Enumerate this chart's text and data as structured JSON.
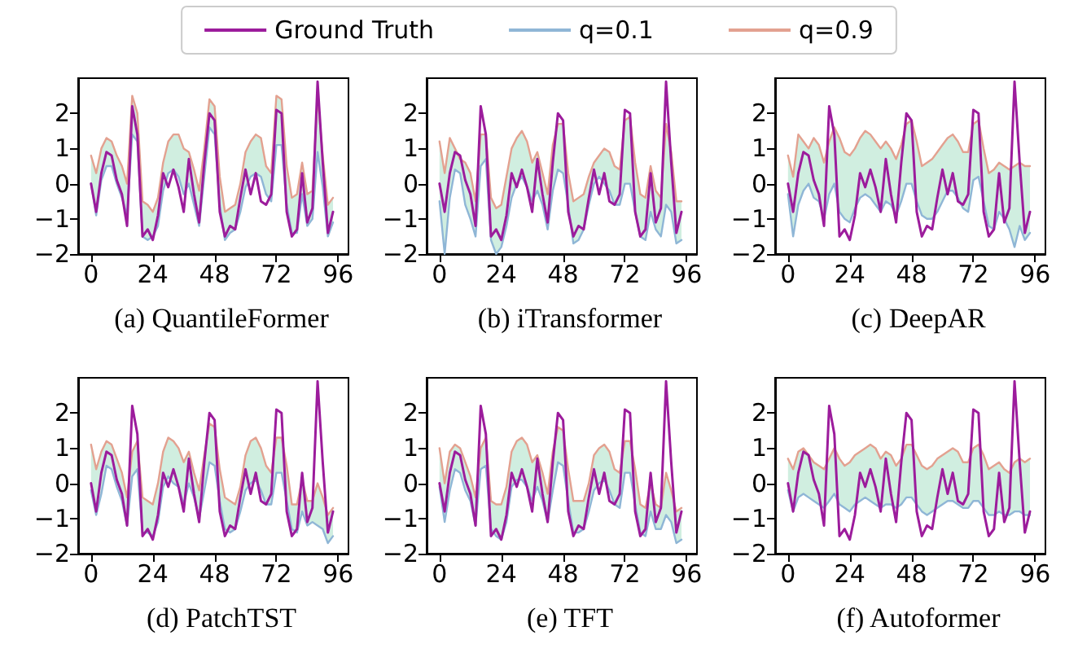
{
  "chart_data": [
    {
      "type": "line",
      "title": "(a) QuantileFormer",
      "legend": "top",
      "marker": "none",
      "line_style": "solid",
      "grid": false,
      "xlim": [
        -5,
        100
      ],
      "xticks": [
        0,
        24,
        48,
        72,
        96
      ],
      "ylim": [
        -2,
        3
      ],
      "yticks": [
        -2,
        -1,
        0,
        1,
        2
      ],
      "x": [
        0,
        2,
        4,
        6,
        8,
        10,
        12,
        14,
        16,
        18,
        20,
        22,
        24,
        26,
        28,
        30,
        32,
        34,
        36,
        38,
        40,
        42,
        44,
        46,
        48,
        50,
        52,
        54,
        56,
        58,
        60,
        62,
        64,
        66,
        68,
        70,
        72,
        74,
        76,
        78,
        80,
        82,
        84,
        86,
        88,
        90,
        92,
        94
      ],
      "series": [
        {
          "name": "Ground Truth",
          "color": "#9c1c9c",
          "values": [
            0.0,
            -0.8,
            0.3,
            0.9,
            0.8,
            0.1,
            -0.3,
            -1.2,
            2.2,
            1.4,
            -1.5,
            -1.3,
            -1.6,
            -0.9,
            0.3,
            -0.1,
            0.4,
            -0.1,
            -0.8,
            0.7,
            -0.3,
            -1.1,
            0.6,
            2.0,
            1.8,
            -0.8,
            -1.5,
            -1.2,
            -1.3,
            -0.4,
            0.4,
            -0.3,
            0.3,
            -0.5,
            -0.6,
            -0.3,
            2.1,
            2.0,
            -0.8,
            -1.5,
            -1.3,
            0.3,
            -1.1,
            -0.7,
            2.9,
            0.6,
            -1.4,
            -0.8
          ],
          "lower": [
            0.0,
            -0.9,
            0.1,
            0.5,
            0.5,
            0.0,
            -0.4,
            -0.9,
            1.4,
            1.2,
            -1.5,
            -1.6,
            -1.5,
            -1.2,
            -0.2,
            0.3,
            0.4,
            0.2,
            -0.3,
            0.0,
            -0.6,
            -1.2,
            0.2,
            1.6,
            1.4,
            -0.6,
            -1.6,
            -1.4,
            -1.3,
            -0.8,
            -0.1,
            0.2,
            0.3,
            0.2,
            -0.3,
            -0.5,
            1.1,
            1.1,
            -0.6,
            -1.4,
            -1.4,
            -0.3,
            -1.2,
            -1.0,
            0.9,
            -0.1,
            -1.5,
            -1.1
          ],
          "upper": [
            0.8,
            0.3,
            1.0,
            1.3,
            1.2,
            0.8,
            0.5,
            0.0,
            2.5,
            2.0,
            -0.5,
            -0.6,
            -0.8,
            -0.4,
            0.6,
            1.2,
            1.4,
            1.4,
            1.0,
            0.9,
            0.4,
            -0.2,
            1.0,
            2.4,
            2.2,
            0.2,
            -0.8,
            -0.7,
            -0.6,
            0.0,
            0.9,
            1.2,
            1.4,
            1.3,
            0.5,
            0.3,
            2.5,
            2.4,
            0.5,
            -0.4,
            -0.3,
            0.6,
            -0.3,
            -0.2,
            2.5,
            0.8,
            -0.6,
            -0.4
          ]
        },
        {
          "name": "q=0.1",
          "color": "#8fb6d6",
          "values": [
            0.0,
            -0.9,
            0.1,
            0.5,
            0.5,
            0.0,
            -0.4,
            -0.9,
            1.4,
            1.2,
            -1.5,
            -1.6,
            -1.5,
            -1.2,
            -0.2,
            0.3,
            0.4,
            0.2,
            -0.3,
            0.0,
            -0.6,
            -1.2,
            0.2,
            1.6,
            1.4,
            -0.6,
            -1.6,
            -1.4,
            -1.3,
            -0.8,
            -0.1,
            0.2,
            0.3,
            0.2,
            -0.3,
            -0.5,
            1.1,
            1.1,
            -0.6,
            -1.4,
            -1.4,
            -0.3,
            -1.2,
            -1.0,
            0.9,
            -0.1,
            -1.5,
            -1.1
          ]
        },
        {
          "name": "q=0.9",
          "color": "#e3a190",
          "values": [
            0.8,
            0.3,
            1.0,
            1.3,
            1.2,
            0.8,
            0.5,
            0.0,
            2.5,
            2.0,
            -0.5,
            -0.6,
            -0.8,
            -0.4,
            0.6,
            1.2,
            1.4,
            1.4,
            1.0,
            0.9,
            0.4,
            -0.2,
            1.0,
            2.4,
            2.2,
            0.2,
            -0.8,
            -0.7,
            -0.6,
            0.0,
            0.9,
            1.2,
            1.4,
            1.3,
            0.5,
            0.3,
            2.5,
            2.4,
            0.5,
            -0.4,
            -0.3,
            0.6,
            -0.3,
            -0.2,
            2.5,
            0.8,
            -0.6,
            -0.4
          ]
        }
      ]
    },
    {
      "type": "line",
      "title": "(b) iTransformer",
      "marker": "none",
      "line_style": "solid",
      "grid": false,
      "xlim": [
        -5,
        100
      ],
      "xticks": [
        0,
        24,
        48,
        72,
        96
      ],
      "ylim": [
        -2,
        3
      ],
      "yticks": [
        -2,
        -1,
        0,
        1,
        2
      ],
      "x": [
        0,
        2,
        4,
        6,
        8,
        10,
        12,
        14,
        16,
        18,
        20,
        22,
        24,
        26,
        28,
        30,
        32,
        34,
        36,
        38,
        40,
        42,
        44,
        46,
        48,
        50,
        52,
        54,
        56,
        58,
        60,
        62,
        64,
        66,
        68,
        70,
        72,
        74,
        76,
        78,
        80,
        82,
        84,
        86,
        88,
        90,
        92,
        94
      ],
      "series": [
        {
          "color": "#9c1c9c",
          "values": [
            0.0,
            -0.8,
            0.3,
            0.9,
            0.8,
            0.1,
            -0.3,
            -1.2,
            2.2,
            1.4,
            -1.5,
            -1.3,
            -1.6,
            -0.9,
            0.3,
            -0.1,
            0.4,
            -0.1,
            -0.8,
            0.7,
            -0.3,
            -1.1,
            0.6,
            2.0,
            1.8,
            -0.8,
            -1.5,
            -1.2,
            -1.3,
            -0.4,
            0.4,
            -0.3,
            0.3,
            -0.5,
            -0.6,
            -0.3,
            2.1,
            2.0,
            -0.8,
            -1.5,
            -1.3,
            0.3,
            -1.1,
            -0.7,
            2.9,
            0.6,
            -1.4,
            -0.8
          ],
          "lower": [
            -0.5,
            -2.0,
            -0.4,
            0.4,
            0.3,
            -0.6,
            -1.0,
            -1.5,
            0.5,
            0.7,
            -1.6,
            -2.0,
            -1.8,
            -1.2,
            -0.4,
            0.0,
            0.2,
            -0.1,
            -0.5,
            -0.2,
            -0.6,
            -1.3,
            -0.2,
            0.4,
            0.3,
            -0.6,
            -1.7,
            -1.6,
            -1.3,
            -0.6,
            0.0,
            0.2,
            0.0,
            -0.2,
            -0.6,
            -0.6,
            0.0,
            0.0,
            -0.8,
            -1.5,
            -1.6,
            -0.8,
            -1.3,
            -1.5,
            -0.6,
            -0.8,
            -1.7,
            -1.6
          ],
          "upper": [
            1.2,
            0.3,
            1.3,
            1.0,
            0.7,
            0.6,
            0.3,
            -0.5,
            1.4,
            1.4,
            -0.4,
            -0.7,
            -0.6,
            0.2,
            1.0,
            1.3,
            1.5,
            1.2,
            0.6,
            0.9,
            0.3,
            -0.3,
            1.1,
            1.7,
            1.7,
            0.3,
            -0.5,
            -0.4,
            -0.3,
            0.2,
            0.6,
            0.8,
            1.0,
            0.9,
            0.5,
            0.4,
            1.8,
            1.9,
            0.6,
            -0.3,
            -0.4,
            0.5,
            -0.2,
            -0.4,
            1.7,
            0.9,
            -0.5,
            -0.5
          ]
        },
        {
          "color": "#8fb6d6",
          "values": [
            -0.5,
            -2.0,
            -0.4,
            0.4,
            0.3,
            -0.6,
            -1.0,
            -1.5,
            0.5,
            0.7,
            -1.6,
            -2.0,
            -1.8,
            -1.2,
            -0.4,
            0.0,
            0.2,
            -0.1,
            -0.5,
            -0.2,
            -0.6,
            -1.3,
            -0.2,
            0.4,
            0.3,
            -0.6,
            -1.7,
            -1.6,
            -1.3,
            -0.6,
            0.0,
            0.2,
            0.0,
            -0.2,
            -0.6,
            -0.6,
            0.0,
            0.0,
            -0.8,
            -1.5,
            -1.6,
            -0.8,
            -1.3,
            -1.5,
            -0.6,
            -0.8,
            -1.7,
            -1.6
          ]
        },
        {
          "color": "#e3a190",
          "values": [
            1.2,
            0.3,
            1.3,
            1.0,
            0.7,
            0.6,
            0.3,
            -0.5,
            1.4,
            1.4,
            -0.4,
            -0.7,
            -0.6,
            0.2,
            1.0,
            1.3,
            1.5,
            1.2,
            0.6,
            0.9,
            0.3,
            -0.3,
            1.1,
            1.7,
            1.7,
            0.3,
            -0.5,
            -0.4,
            -0.3,
            0.2,
            0.6,
            0.8,
            1.0,
            0.9,
            0.5,
            0.4,
            1.8,
            1.9,
            0.6,
            -0.3,
            -0.4,
            0.5,
            -0.2,
            -0.4,
            1.7,
            0.9,
            -0.5,
            -0.5
          ]
        }
      ]
    },
    {
      "type": "line",
      "title": "(c) DeepAR",
      "marker": "none",
      "line_style": "solid",
      "grid": false,
      "xlim": [
        -5,
        100
      ],
      "xticks": [
        0,
        24,
        48,
        72,
        96
      ],
      "ylim": [
        -2,
        3
      ],
      "yticks": [
        -2,
        -1,
        0,
        1,
        2
      ],
      "x": [
        0,
        2,
        4,
        6,
        8,
        10,
        12,
        14,
        16,
        18,
        20,
        22,
        24,
        26,
        28,
        30,
        32,
        34,
        36,
        38,
        40,
        42,
        44,
        46,
        48,
        50,
        52,
        54,
        56,
        58,
        60,
        62,
        64,
        66,
        68,
        70,
        72,
        74,
        76,
        78,
        80,
        82,
        84,
        86,
        88,
        90,
        92,
        94
      ],
      "series": [
        {
          "color": "#9c1c9c",
          "values": [
            0.0,
            -0.8,
            0.3,
            0.9,
            0.8,
            0.1,
            -0.3,
            -1.2,
            2.2,
            1.4,
            -1.5,
            -1.3,
            -1.6,
            -0.9,
            0.3,
            -0.1,
            0.4,
            -0.1,
            -0.8,
            0.7,
            -0.3,
            -1.1,
            0.6,
            2.0,
            1.8,
            -0.8,
            -1.5,
            -1.2,
            -1.3,
            -0.4,
            0.4,
            -0.3,
            0.3,
            -0.5,
            -0.6,
            -0.3,
            2.1,
            2.0,
            -0.8,
            -1.5,
            -1.3,
            0.3,
            -1.1,
            -0.7,
            2.9,
            0.6,
            -1.4,
            -0.8
          ],
          "lower": [
            -0.3,
            -1.5,
            -0.6,
            -0.2,
            0.0,
            -0.4,
            -0.5,
            -1.0,
            -0.3,
            0.0,
            -0.8,
            -1.0,
            -1.1,
            -0.7,
            -0.4,
            -0.3,
            -0.4,
            -0.6,
            -0.8,
            -0.5,
            -0.6,
            -0.9,
            -0.5,
            0.0,
            0.0,
            -0.5,
            -0.9,
            -1.0,
            -1.0,
            -0.8,
            -0.5,
            -0.2,
            -0.2,
            -0.4,
            -0.7,
            -0.8,
            0.1,
            0.2,
            -0.5,
            -1.2,
            -1.3,
            -0.8,
            -1.0,
            -1.3,
            -1.8,
            -1.2,
            -1.6,
            -1.4
          ],
          "upper": [
            0.8,
            0.2,
            1.4,
            1.2,
            1.0,
            1.3,
            1.1,
            0.6,
            1.2,
            1.6,
            1.3,
            0.9,
            0.8,
            1.0,
            1.3,
            1.5,
            1.4,
            1.2,
            1.0,
            1.2,
            1.0,
            0.7,
            1.1,
            1.7,
            1.8,
            1.2,
            0.5,
            0.6,
            0.7,
            0.9,
            1.1,
            1.3,
            1.4,
            1.2,
            0.9,
            0.9,
            1.7,
            1.8,
            1.0,
            0.3,
            0.4,
            0.6,
            0.5,
            0.4,
            0.5,
            0.6,
            0.5,
            0.5
          ]
        },
        {
          "color": "#8fb6d6",
          "values": [
            -0.3,
            -1.5,
            -0.6,
            -0.2,
            0.0,
            -0.4,
            -0.5,
            -1.0,
            -0.3,
            0.0,
            -0.8,
            -1.0,
            -1.1,
            -0.7,
            -0.4,
            -0.3,
            -0.4,
            -0.6,
            -0.8,
            -0.5,
            -0.6,
            -0.9,
            -0.5,
            0.0,
            0.0,
            -0.5,
            -0.9,
            -1.0,
            -1.0,
            -0.8,
            -0.5,
            -0.2,
            -0.2,
            -0.4,
            -0.7,
            -0.8,
            0.1,
            0.2,
            -0.5,
            -1.2,
            -1.3,
            -0.8,
            -1.0,
            -1.3,
            -1.8,
            -1.2,
            -1.6,
            -1.4
          ]
        },
        {
          "color": "#e3a190",
          "values": [
            0.8,
            0.2,
            1.4,
            1.2,
            1.0,
            1.3,
            1.1,
            0.6,
            1.2,
            1.6,
            1.3,
            0.9,
            0.8,
            1.0,
            1.3,
            1.5,
            1.4,
            1.2,
            1.0,
            1.2,
            1.0,
            0.7,
            1.1,
            1.7,
            1.8,
            1.2,
            0.5,
            0.6,
            0.7,
            0.9,
            1.1,
            1.3,
            1.4,
            1.2,
            0.9,
            0.9,
            1.7,
            1.8,
            1.0,
            0.3,
            0.4,
            0.6,
            0.5,
            0.4,
            0.5,
            0.6,
            0.5,
            0.5
          ]
        }
      ]
    },
    {
      "type": "line",
      "title": "(d) PatchTST",
      "marker": "none",
      "line_style": "solid",
      "grid": false,
      "xlim": [
        -5,
        100
      ],
      "xticks": [
        0,
        24,
        48,
        72,
        96
      ],
      "ylim": [
        -2,
        3
      ],
      "yticks": [
        -2,
        -1,
        0,
        1,
        2
      ],
      "x": [
        0,
        2,
        4,
        6,
        8,
        10,
        12,
        14,
        16,
        18,
        20,
        22,
        24,
        26,
        28,
        30,
        32,
        34,
        36,
        38,
        40,
        42,
        44,
        46,
        48,
        50,
        52,
        54,
        56,
        58,
        60,
        62,
        64,
        66,
        68,
        70,
        72,
        74,
        76,
        78,
        80,
        82,
        84,
        86,
        88,
        90,
        92,
        94
      ],
      "series": [
        {
          "color": "#9c1c9c",
          "values": [
            0.0,
            -0.8,
            0.3,
            0.9,
            0.8,
            0.1,
            -0.3,
            -1.2,
            2.2,
            1.4,
            -1.5,
            -1.3,
            -1.6,
            -0.9,
            0.3,
            -0.1,
            0.4,
            -0.1,
            -0.8,
            0.7,
            -0.3,
            -1.1,
            0.6,
            2.0,
            1.8,
            -0.8,
            -1.5,
            -1.2,
            -1.3,
            -0.4,
            0.4,
            -0.3,
            0.3,
            -0.5,
            -0.6,
            -0.3,
            2.1,
            2.0,
            -0.8,
            -1.5,
            -1.3,
            0.3,
            -1.1,
            -0.7,
            2.9,
            0.6,
            -1.4,
            -0.8
          ],
          "lower": [
            -0.2,
            -0.9,
            -0.3,
            0.5,
            0.4,
            -0.1,
            -0.5,
            -1.2,
            0.2,
            0.4,
            -1.4,
            -1.4,
            -1.5,
            -1.1,
            -0.1,
            0.2,
            0.0,
            -0.1,
            -0.6,
            0.0,
            -0.4,
            -1.0,
            -0.2,
            0.6,
            0.5,
            -0.5,
            -1.3,
            -1.4,
            -1.3,
            -0.8,
            -0.2,
            0.0,
            0.1,
            -0.2,
            -0.6,
            -0.6,
            0.3,
            0.3,
            -0.5,
            -1.3,
            -1.4,
            -0.8,
            -1.2,
            -1.1,
            -1.2,
            -1.3,
            -1.7,
            -1.5
          ],
          "upper": [
            1.1,
            0.4,
            0.9,
            1.2,
            1.1,
            0.7,
            0.3,
            -0.4,
            0.9,
            1.2,
            -0.4,
            -0.5,
            -0.6,
            0.0,
            0.9,
            1.3,
            1.2,
            1.0,
            0.6,
            0.9,
            0.3,
            -0.2,
            0.8,
            1.7,
            1.6,
            0.4,
            -0.4,
            -0.5,
            -0.6,
            -0.1,
            0.8,
            1.2,
            1.3,
            1.0,
            0.5,
            0.3,
            1.3,
            1.3,
            0.5,
            -0.6,
            -0.6,
            0.1,
            -0.5,
            -0.5,
            0.0,
            -0.4,
            -0.9,
            -0.7
          ]
        },
        {
          "color": "#8fb6d6",
          "values": [
            -0.2,
            -0.9,
            -0.3,
            0.5,
            0.4,
            -0.1,
            -0.5,
            -1.2,
            0.2,
            0.4,
            -1.4,
            -1.4,
            -1.5,
            -1.1,
            -0.1,
            0.2,
            0.0,
            -0.1,
            -0.6,
            0.0,
            -0.4,
            -1.0,
            -0.2,
            0.6,
            0.5,
            -0.5,
            -1.3,
            -1.4,
            -1.3,
            -0.8,
            -0.2,
            0.0,
            0.1,
            -0.2,
            -0.6,
            -0.6,
            0.3,
            0.3,
            -0.5,
            -1.3,
            -1.4,
            -0.8,
            -1.2,
            -1.1,
            -1.2,
            -1.3,
            -1.7,
            -1.5
          ]
        },
        {
          "color": "#e3a190",
          "values": [
            1.1,
            0.4,
            0.9,
            1.2,
            1.1,
            0.7,
            0.3,
            -0.4,
            0.9,
            1.2,
            -0.4,
            -0.5,
            -0.6,
            0.0,
            0.9,
            1.3,
            1.2,
            1.0,
            0.6,
            0.9,
            0.3,
            -0.2,
            0.8,
            1.7,
            1.6,
            0.4,
            -0.4,
            -0.5,
            -0.6,
            -0.1,
            0.8,
            1.2,
            1.3,
            1.0,
            0.5,
            0.3,
            1.3,
            1.3,
            0.5,
            -0.6,
            -0.6,
            0.1,
            -0.5,
            -0.5,
            0.0,
            -0.4,
            -0.9,
            -0.7
          ]
        }
      ]
    },
    {
      "type": "line",
      "title": "(e) TFT",
      "marker": "none",
      "line_style": "solid",
      "grid": false,
      "xlim": [
        -5,
        100
      ],
      "xticks": [
        0,
        24,
        48,
        72,
        96
      ],
      "ylim": [
        -2,
        3
      ],
      "yticks": [
        -2,
        -1,
        0,
        1,
        2
      ],
      "x": [
        0,
        2,
        4,
        6,
        8,
        10,
        12,
        14,
        16,
        18,
        20,
        22,
        24,
        26,
        28,
        30,
        32,
        34,
        36,
        38,
        40,
        42,
        44,
        46,
        48,
        50,
        52,
        54,
        56,
        58,
        60,
        62,
        64,
        66,
        68,
        70,
        72,
        74,
        76,
        78,
        80,
        82,
        84,
        86,
        88,
        90,
        92,
        94
      ],
      "series": [
        {
          "color": "#9c1c9c",
          "values": [
            0.0,
            -0.8,
            0.3,
            0.9,
            0.8,
            0.1,
            -0.3,
            -1.2,
            2.2,
            1.4,
            -1.5,
            -1.3,
            -1.6,
            -0.9,
            0.3,
            -0.1,
            0.4,
            -0.1,
            -0.8,
            0.7,
            -0.3,
            -1.1,
            0.6,
            2.0,
            1.8,
            -0.8,
            -1.5,
            -1.2,
            -1.3,
            -0.4,
            0.4,
            -0.3,
            0.3,
            -0.5,
            -0.6,
            -0.3,
            2.1,
            2.0,
            -0.8,
            -1.5,
            -1.3,
            0.3,
            -1.1,
            -0.7,
            2.9,
            0.6,
            -1.4,
            -0.8
          ],
          "lower": [
            -0.1,
            -1.1,
            -0.2,
            0.4,
            0.3,
            -0.2,
            -0.5,
            -1.2,
            0.4,
            0.5,
            -1.3,
            -1.5,
            -1.6,
            -1.1,
            -0.1,
            0.1,
            0.1,
            -0.1,
            -0.5,
            -0.1,
            -0.5,
            -1.1,
            -0.2,
            0.6,
            0.5,
            -0.5,
            -1.4,
            -1.4,
            -1.3,
            -0.8,
            -0.2,
            0.0,
            0.1,
            -0.2,
            -0.6,
            -0.7,
            0.3,
            0.3,
            -0.6,
            -1.4,
            -1.5,
            -0.8,
            -1.3,
            -1.3,
            -0.9,
            -1.1,
            -1.7,
            -1.6
          ],
          "upper": [
            1.0,
            0.0,
            0.9,
            1.1,
            1.0,
            0.6,
            0.2,
            -0.4,
            1.0,
            1.3,
            -0.5,
            -0.6,
            -0.6,
            -0.1,
            0.9,
            1.2,
            1.3,
            1.1,
            0.6,
            0.8,
            0.3,
            -0.3,
            0.9,
            1.6,
            1.5,
            0.4,
            -0.5,
            -0.5,
            -0.5,
            0.0,
            0.8,
            1.0,
            1.1,
            0.9,
            0.4,
            0.3,
            1.2,
            1.2,
            0.4,
            -0.6,
            -0.7,
            0.0,
            -0.6,
            -0.7,
            0.3,
            -0.2,
            -0.8,
            -0.7
          ]
        },
        {
          "color": "#8fb6d6",
          "values": [
            -0.1,
            -1.1,
            -0.2,
            0.4,
            0.3,
            -0.2,
            -0.5,
            -1.2,
            0.4,
            0.5,
            -1.3,
            -1.5,
            -1.6,
            -1.1,
            -0.1,
            0.1,
            0.1,
            -0.1,
            -0.5,
            -0.1,
            -0.5,
            -1.1,
            -0.2,
            0.6,
            0.5,
            -0.5,
            -1.4,
            -1.4,
            -1.3,
            -0.8,
            -0.2,
            0.0,
            0.1,
            -0.2,
            -0.6,
            -0.7,
            0.3,
            0.3,
            -0.6,
            -1.4,
            -1.5,
            -0.8,
            -1.3,
            -1.3,
            -0.9,
            -1.1,
            -1.7,
            -1.6
          ]
        },
        {
          "color": "#e3a190",
          "values": [
            1.0,
            0.0,
            0.9,
            1.1,
            1.0,
            0.6,
            0.2,
            -0.4,
            1.0,
            1.3,
            -0.5,
            -0.6,
            -0.6,
            -0.1,
            0.9,
            1.2,
            1.3,
            1.1,
            0.6,
            0.8,
            0.3,
            -0.3,
            0.9,
            1.6,
            1.5,
            0.4,
            -0.5,
            -0.5,
            -0.5,
            0.0,
            0.8,
            1.0,
            1.1,
            0.9,
            0.4,
            0.3,
            1.2,
            1.2,
            0.4,
            -0.6,
            -0.7,
            0.0,
            -0.6,
            -0.7,
            0.3,
            -0.2,
            -0.8,
            -0.7
          ]
        }
      ]
    },
    {
      "type": "line",
      "title": "(f) Autoformer",
      "marker": "none",
      "line_style": "solid",
      "grid": false,
      "xlim": [
        -5,
        100
      ],
      "xticks": [
        0,
        24,
        48,
        72,
        96
      ],
      "ylim": [
        -2,
        3
      ],
      "yticks": [
        -2,
        -1,
        0,
        1,
        2
      ],
      "x": [
        0,
        2,
        4,
        6,
        8,
        10,
        12,
        14,
        16,
        18,
        20,
        22,
        24,
        26,
        28,
        30,
        32,
        34,
        36,
        38,
        40,
        42,
        44,
        46,
        48,
        50,
        52,
        54,
        56,
        58,
        60,
        62,
        64,
        66,
        68,
        70,
        72,
        74,
        76,
        78,
        80,
        82,
        84,
        86,
        88,
        90,
        92,
        94
      ],
      "series": [
        {
          "color": "#9c1c9c",
          "values": [
            0.0,
            -0.8,
            0.3,
            0.9,
            0.8,
            0.1,
            -0.3,
            -1.2,
            2.2,
            1.4,
            -1.5,
            -1.3,
            -1.6,
            -0.9,
            0.3,
            -0.1,
            0.4,
            -0.1,
            -0.8,
            0.7,
            -0.3,
            -1.1,
            0.6,
            2.0,
            1.8,
            -0.8,
            -1.5,
            -1.2,
            -1.3,
            -0.4,
            0.4,
            -0.3,
            0.3,
            -0.5,
            -0.6,
            -0.3,
            2.1,
            2.0,
            -0.8,
            -1.5,
            -1.3,
            0.3,
            -1.1,
            -0.7,
            2.9,
            0.6,
            -1.4,
            -0.8
          ],
          "lower": [
            -0.2,
            -0.8,
            -0.4,
            -0.3,
            -0.4,
            -0.5,
            -0.6,
            -0.7,
            -0.5,
            -0.3,
            -0.6,
            -0.7,
            -0.8,
            -0.6,
            -0.5,
            -0.4,
            -0.5,
            -0.6,
            -0.7,
            -0.6,
            -0.6,
            -0.7,
            -0.6,
            -0.4,
            -0.4,
            -0.6,
            -0.8,
            -0.9,
            -0.8,
            -0.7,
            -0.6,
            -0.5,
            -0.5,
            -0.6,
            -0.7,
            -0.7,
            -0.5,
            -0.5,
            -0.7,
            -0.9,
            -0.9,
            -0.8,
            -0.9,
            -0.9,
            -0.8,
            -0.8,
            -0.9,
            -0.9
          ],
          "upper": [
            0.7,
            0.4,
            0.9,
            1.0,
            0.8,
            0.6,
            0.5,
            0.4,
            0.7,
            1.0,
            0.7,
            0.5,
            0.6,
            0.8,
            0.9,
            1.0,
            1.1,
            1.0,
            0.7,
            0.9,
            0.8,
            0.5,
            0.7,
            1.1,
            1.1,
            0.8,
            0.5,
            0.4,
            0.5,
            0.7,
            0.8,
            0.9,
            1.0,
            0.9,
            0.6,
            0.6,
            1.0,
            1.1,
            0.8,
            0.4,
            0.5,
            0.6,
            0.4,
            0.3,
            0.6,
            0.7,
            0.6,
            0.7
          ]
        },
        {
          "color": "#8fb6d6",
          "values": [
            -0.2,
            -0.8,
            -0.4,
            -0.3,
            -0.4,
            -0.5,
            -0.6,
            -0.7,
            -0.5,
            -0.3,
            -0.6,
            -0.7,
            -0.8,
            -0.6,
            -0.5,
            -0.4,
            -0.5,
            -0.6,
            -0.7,
            -0.6,
            -0.6,
            -0.7,
            -0.6,
            -0.4,
            -0.4,
            -0.6,
            -0.8,
            -0.9,
            -0.8,
            -0.7,
            -0.6,
            -0.5,
            -0.5,
            -0.6,
            -0.7,
            -0.7,
            -0.5,
            -0.5,
            -0.7,
            -0.9,
            -0.9,
            -0.8,
            -0.9,
            -0.9,
            -0.8,
            -0.8,
            -0.9,
            -0.9
          ]
        },
        {
          "color": "#e3a190",
          "values": [
            0.7,
            0.4,
            0.9,
            1.0,
            0.8,
            0.6,
            0.5,
            0.4,
            0.7,
            1.0,
            0.7,
            0.5,
            0.6,
            0.8,
            0.9,
            1.0,
            1.1,
            1.0,
            0.7,
            0.9,
            0.8,
            0.5,
            0.7,
            1.1,
            1.1,
            0.8,
            0.5,
            0.4,
            0.5,
            0.7,
            0.8,
            0.9,
            1.0,
            0.9,
            0.6,
            0.6,
            1.0,
            1.1,
            0.8,
            0.4,
            0.5,
            0.6,
            0.4,
            0.3,
            0.6,
            0.7,
            0.6,
            0.7
          ]
        }
      ]
    }
  ]
}
